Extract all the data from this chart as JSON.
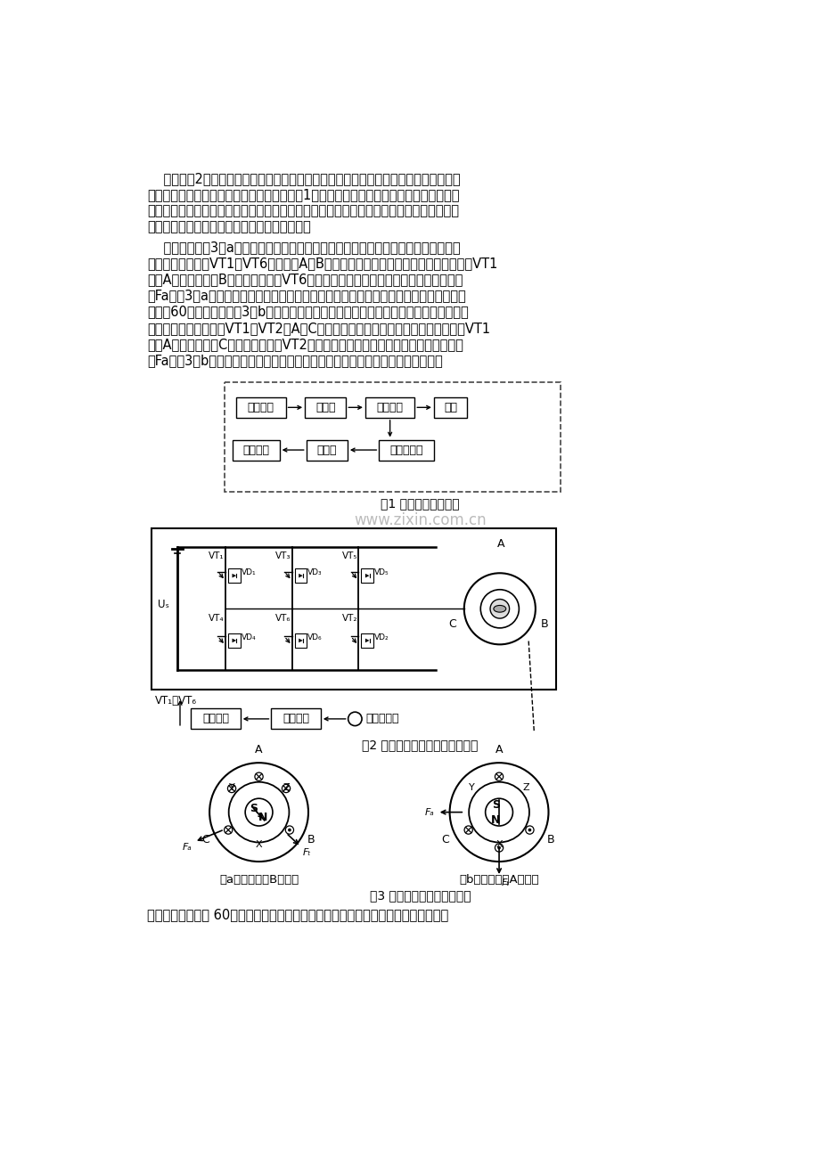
{
  "bg_color": "#ffffff",
  "text_color": "#000000",
  "page_width": 9.2,
  "page_height": 13.02,
  "paragraph1": "    下面以图2所示的两相导通星形三相六状态无刷直流电动机为例来说明其工作原理。电",
  "paragraph1b": "机本体的电枢绕组为三相星形连接，极对数为1，位置传感器与电机本体同轴，控制电路对",
  "paragraph1c": "位置信号进行逻辑变换后产生驱动信号，驱动信号经驱动电路隔离放大后控制逆变器的功率",
  "paragraph1d": "开关管，使电机的各相绕组按一定的顺序工作。",
  "paragraph2": "    转子旋转到图3（a）所示的位置时，转子位置传感器输出的信号经控制电路逻辑变换",
  "paragraph2b": "后驱动逆变器，使VT1、VT6导通，即A、B两相绕组通电，电流从电源的正极流出，经VT1",
  "paragraph2c": "流入A相绕组，再从B相绕组流出，经VT6回到电源的负极。电驱绕组在空间产生的磁动",
  "paragraph2d": "势Fa如图3（a）所示，此时定转子磁场相互作用，使电机的转子顺时针转动。当转子在空",
  "paragraph2e": "间转过60电角度，到达图3（b）所示位置时，转子位置传感器输出的信号经控制电路逻辑",
  "paragraph2f": "变换后驱动逆变器，使VT1、VT2，A、C两相绕组通电，电流从电源的正极流出，经VT1",
  "paragraph2g": "流入A相绕组，再从C相绕组流出，经VT2回到电源的负极。电驱绕组在空间产生的磁动",
  "paragraph2h": "势Fa如图3（b）所示，此时定转子磁场相互作用，使电机的转子继续顺时针转动。",
  "fig1_caption": "图1 无刷直流电机组成",
  "fig2_caption": "图2 三相无刷直流电机系统原理图",
  "fig3_caption": "图3 无刷直流电机工作原理图",
  "fig3a_caption": "（a）磁极处于B相平面",
  "fig3b_caption": "（b）磁极处于A相平面",
  "last_line": "转子在空间每转过 60电角度，逆变器开关就发生一次切换，功率开关管的导通逻辑以",
  "watermark": "www.zixin.com.cn"
}
